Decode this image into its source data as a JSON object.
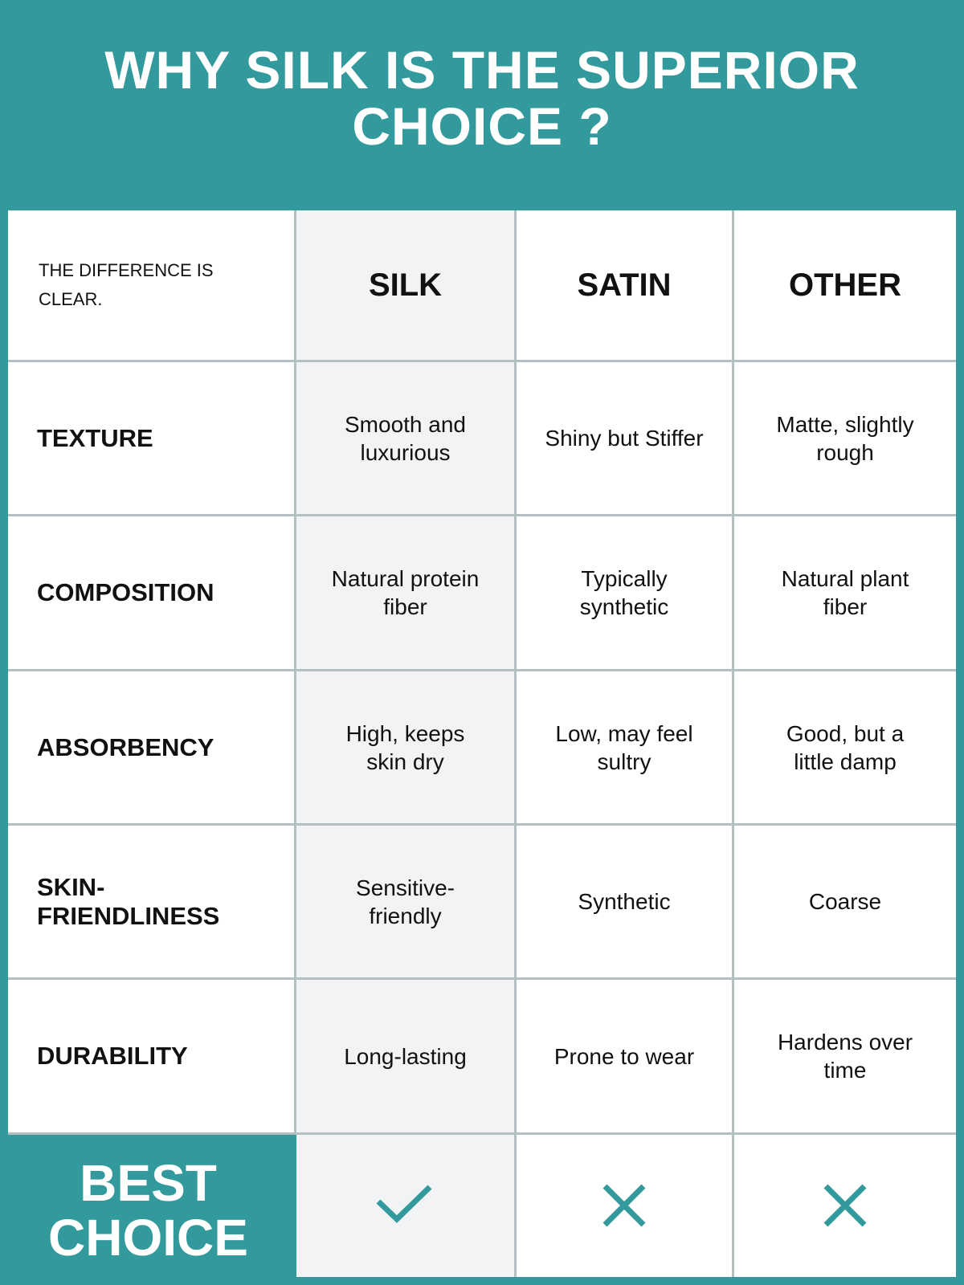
{
  "title": "WHY SILK IS THE SUPERIOR CHOICE ?",
  "corner_label": "THE DIFFERENCE IS CLEAR.",
  "columns": [
    "SILK",
    "SATIN",
    "OTHER"
  ],
  "rows": [
    {
      "label": "TEXTURE",
      "values": [
        "Smooth and luxurious",
        "Shiny but Stiffer",
        "Matte, slightly rough"
      ]
    },
    {
      "label": "COMPOSITION",
      "values": [
        "Natural protein fiber",
        "Typically synthetic",
        "Natural plant fiber"
      ]
    },
    {
      "label": "ABSORBENCY",
      "values": [
        "High, keeps skin dry",
        "Low, may feel sultry",
        "Good, but a little damp"
      ]
    },
    {
      "label": "SKIN-FRIENDLINESS",
      "values": [
        "Sensitive-friendly",
        "Synthetic",
        "Coarse"
      ]
    },
    {
      "label": "DURABILITY",
      "values": [
        "Long-lasting",
        "Prone to wear",
        "Hardens over time"
      ]
    }
  ],
  "best_choice": {
    "label": "BEST CHOICE",
    "marks": [
      "check-icon",
      "x-icon",
      "x-icon"
    ]
  },
  "colors": {
    "accent": "#329a9c",
    "silk_column": "#f1f3f5",
    "grid": "#b3bfc0"
  }
}
